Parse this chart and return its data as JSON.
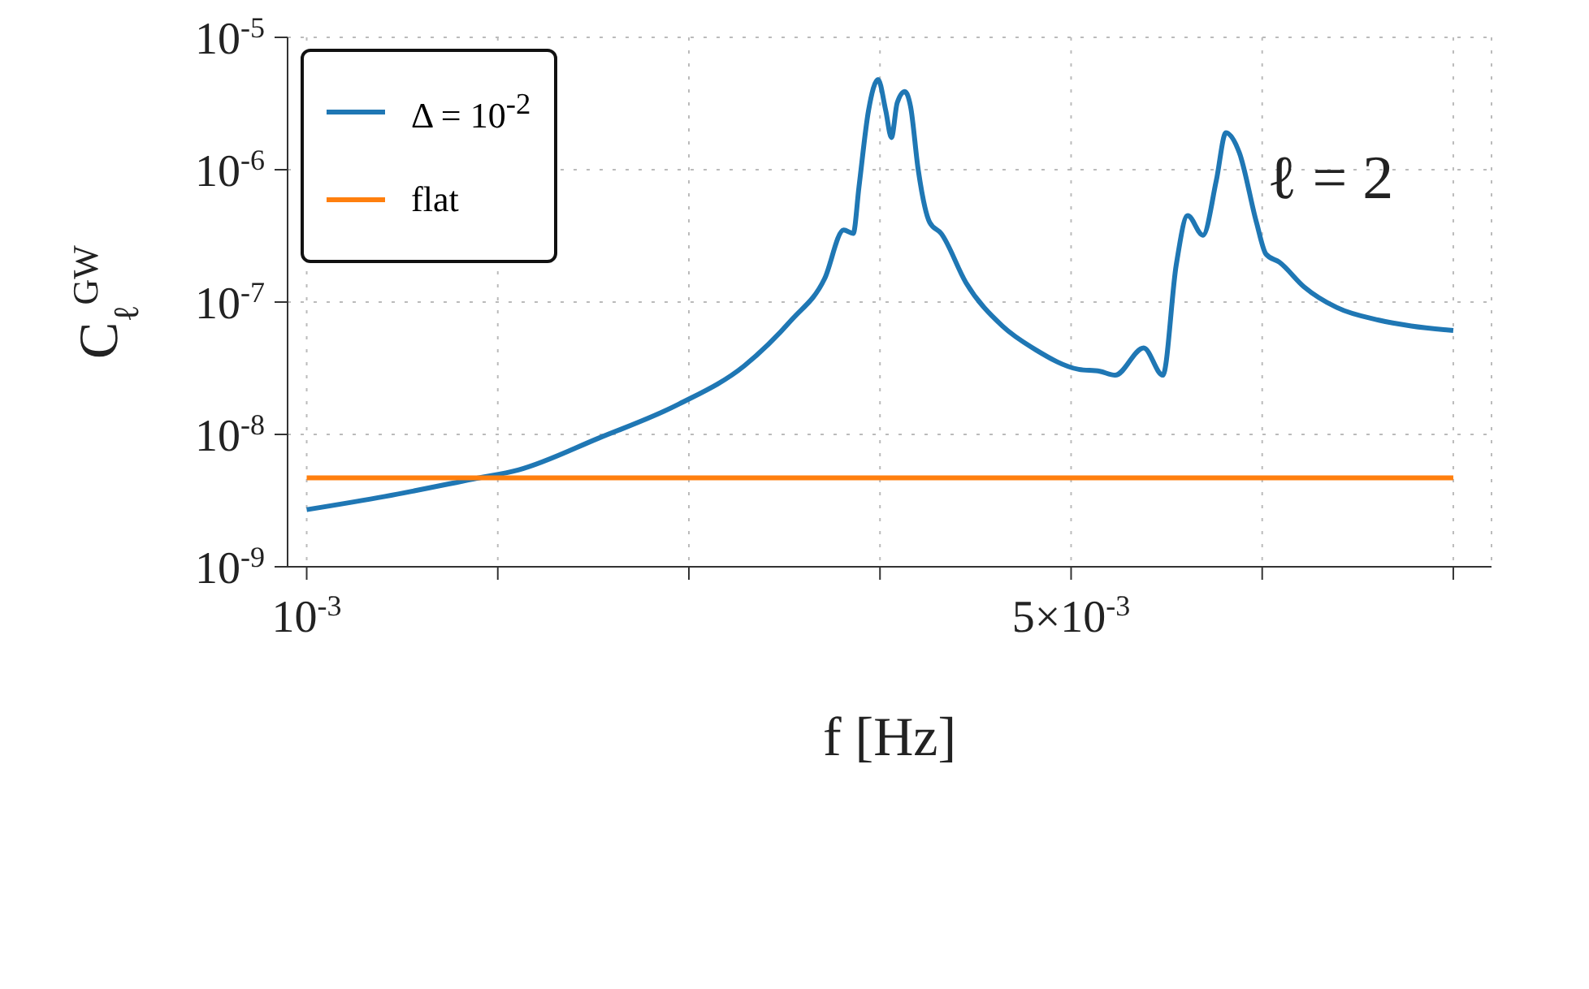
{
  "chart_data": {
    "type": "line",
    "xlabel": "f [Hz]",
    "ylabel": "C$_{ℓ}$$^{GW}$",
    "annotations": [
      "ℓ = 2"
    ],
    "series": [
      {
        "name": "Δ = 10$^{-2}$",
        "color": "#1f77b4",
        "x": [
          0.001,
          0.00141,
          0.00187,
          0.00211,
          0.00253,
          0.00295,
          0.00329,
          0.00354,
          0.00371,
          0.00381,
          0.00386,
          0.00389,
          0.00394,
          0.00399,
          0.00403,
          0.00406,
          0.00409,
          0.00413,
          0.00416,
          0.0042,
          0.00426,
          0.00432,
          0.00445,
          0.00464,
          0.00481,
          0.00504,
          0.00515,
          0.00523,
          0.00538,
          0.00548,
          0.00555,
          0.00561,
          0.00569,
          0.00576,
          0.00581,
          0.00588,
          0.00597,
          0.00602,
          0.00609,
          0.00622,
          0.00639,
          0.00661,
          0.00678,
          0.007
        ],
        "values": [
          2.7e-09,
          3.4e-09,
          4.6e-09,
          5.4e-09,
          9.4e-09,
          1.7e-08,
          3.3e-08,
          7.4e-08,
          1.5e-07,
          3.5e-07,
          3.3e-07,
          7.4e-07,
          2.8e-06,
          4.8e-06,
          2.8e-06,
          1.75e-06,
          3.2e-06,
          3.9e-06,
          3e-06,
          1e-06,
          4e-07,
          3.3e-07,
          1.4e-07,
          6.6e-08,
          4.4e-08,
          3.1e-08,
          3e-08,
          2.8e-08,
          4.5e-08,
          2.8e-08,
          1.9e-07,
          4.5e-07,
          3.2e-07,
          8.3e-07,
          1.9e-06,
          1.35e-06,
          4e-07,
          2.3e-07,
          2e-07,
          1.3e-07,
          9.1e-08,
          7.3e-08,
          6.6e-08,
          6.1e-08
        ]
      },
      {
        "name": "flat",
        "color": "#ff7f0e",
        "x": [
          0.001,
          0.007
        ],
        "values": [
          4.7e-09,
          4.7e-09
        ]
      }
    ],
    "xlim": [
      0.0009,
      0.0072
    ],
    "xticks": [
      {
        "value": 0.001,
        "label": "10$^{-3}$"
      },
      {
        "value": 0.002,
        "label": null
      },
      {
        "value": 0.003,
        "label": null
      },
      {
        "value": 0.004,
        "label": null
      },
      {
        "value": 0.005,
        "label": "5×10$^{-3}$"
      },
      {
        "value": 0.006,
        "label": null
      },
      {
        "value": 0.007,
        "label": null
      }
    ],
    "ylim": [
      1e-09,
      1e-05
    ],
    "yticks": [
      {
        "value": 1e-09,
        "label": "10$^{-9}$"
      },
      {
        "value": 1e-08,
        "label": "10$^{-8}$"
      },
      {
        "value": 1e-07,
        "label": "10$^{-7}$"
      },
      {
        "value": 1e-06,
        "label": "10$^{-6}$"
      },
      {
        "value": 1e-05,
        "label": "10$^{-5}$"
      }
    ],
    "log": "y",
    "grid": true,
    "legend": "top left",
    "line_style": "solid",
    "marker": "none"
  }
}
